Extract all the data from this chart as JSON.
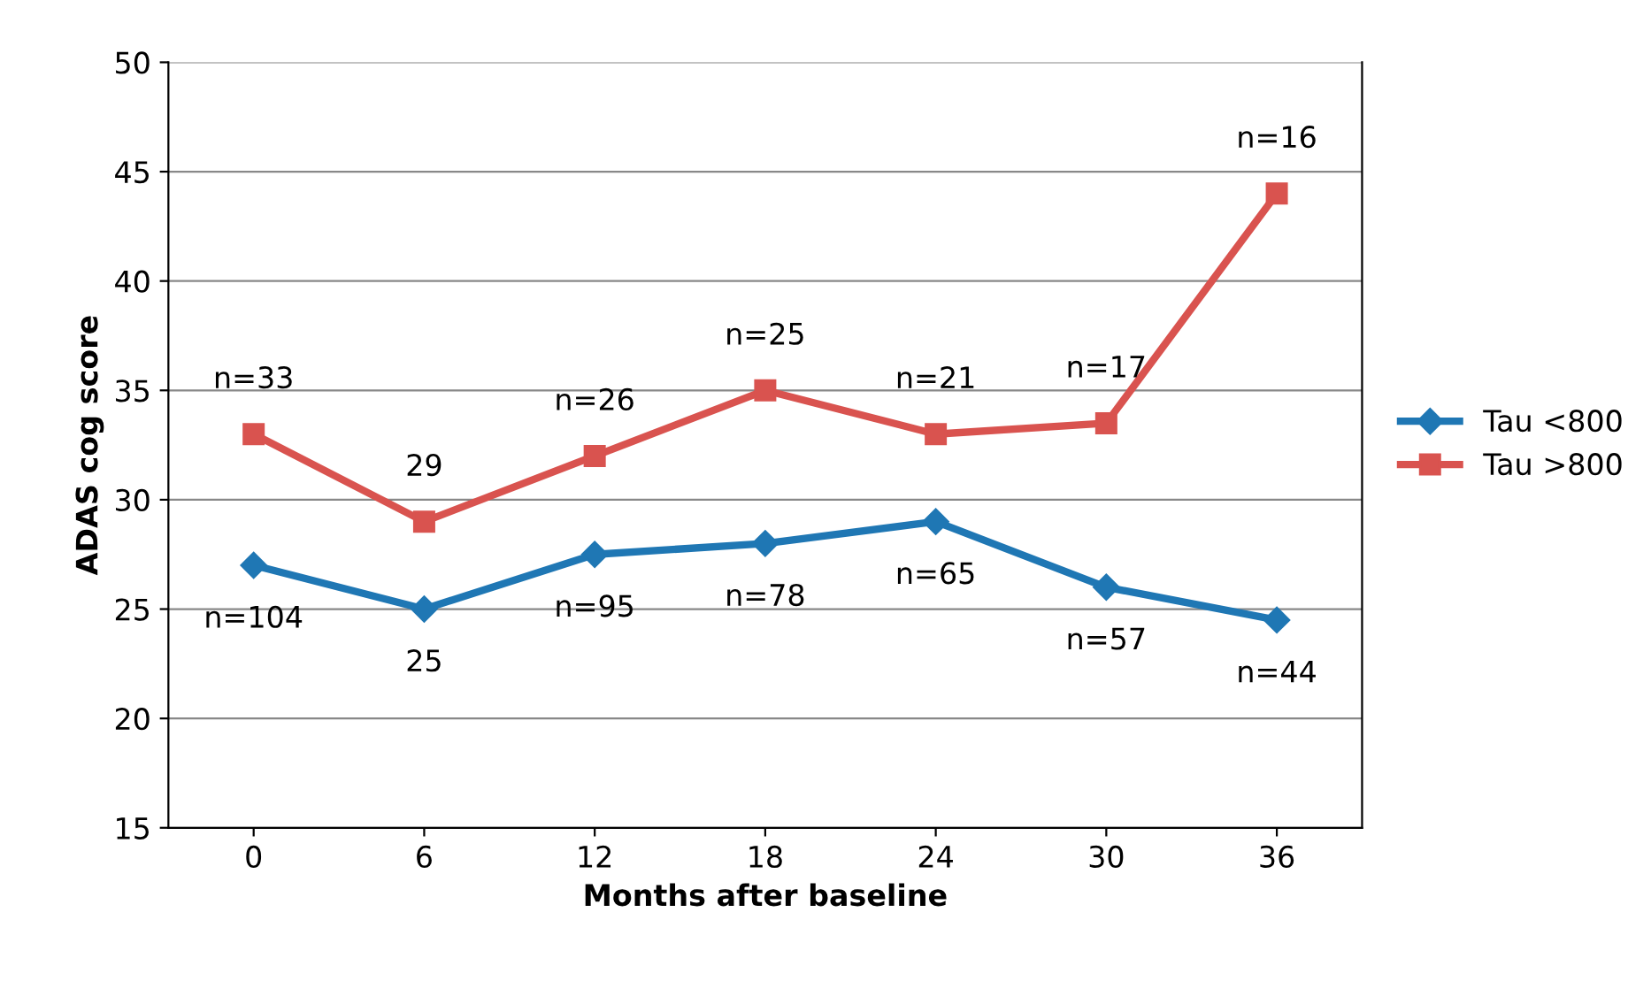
{
  "chart_data": {
    "type": "line",
    "xlabel": "Months after baseline",
    "ylabel": "ADAS cog score",
    "categories": [
      "0",
      "6",
      "12",
      "18",
      "24",
      "30",
      "36"
    ],
    "series": [
      {
        "name": "Tau <800",
        "color": "#1f77b4",
        "marker": "diamond",
        "values": [
          27,
          25,
          27.5,
          28,
          29,
          26,
          24.5
        ]
      },
      {
        "name": "Tau >800",
        "color": "#d9534f",
        "marker": "square",
        "values": [
          33,
          29,
          32,
          35,
          33,
          33.5,
          44
        ]
      }
    ],
    "ylim": [
      15,
      50
    ],
    "yticks": [
      15,
      20,
      25,
      30,
      35,
      40,
      45,
      50
    ],
    "grid": "y",
    "legend": "right",
    "line_style": "solid",
    "annotations": [
      {
        "text": "n=104",
        "x": "0",
        "y": 27
      },
      {
        "text": "25",
        "x": "6",
        "y": 25
      },
      {
        "text": "n=95",
        "x": "12",
        "y": 27.5
      },
      {
        "text": "n=78",
        "x": "18",
        "y": 28
      },
      {
        "text": "n=65",
        "x": "24",
        "y": 29
      },
      {
        "text": "n=57",
        "x": "30",
        "y": 26
      },
      {
        "text": "n=44",
        "x": "36",
        "y": 24.5
      },
      {
        "text": "n=33",
        "x": "0",
        "y": 33
      },
      {
        "text": "29",
        "x": "6",
        "y": 29
      },
      {
        "text": "n=26",
        "x": "12",
        "y": 32
      },
      {
        "text": "n=25",
        "x": "18",
        "y": 35
      },
      {
        "text": "n=21",
        "x": "24",
        "y": 33
      },
      {
        "text": "n=17",
        "x": "30",
        "y": 33.5
      },
      {
        "text": "n=16",
        "x": "36",
        "y": 44
      }
    ]
  }
}
